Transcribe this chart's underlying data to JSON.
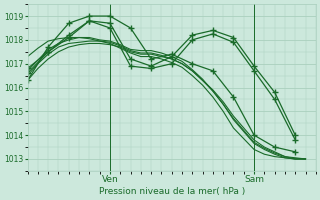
{
  "background_color": "#cce8dc",
  "grid_color": "#aacfbe",
  "line_color": "#1a6b2a",
  "marker_color": "#1a6b2a",
  "xlabel": "Pression niveau de la mer( hPa )",
  "xlabel_color": "#1a6b2a",
  "tick_color": "#1a6b2a",
  "ylim": [
    1012.5,
    1019.5
  ],
  "yticks": [
    1013,
    1014,
    1015,
    1016,
    1017,
    1018,
    1019
  ],
  "xlim": [
    0,
    28
  ],
  "ven_x": 8,
  "sam_x": 22,
  "series": [
    {
      "x": [
        0,
        1,
        2,
        3,
        4,
        5,
        6,
        7,
        8,
        9,
        10,
        11,
        12,
        13,
        14,
        15,
        16,
        17,
        18,
        19,
        20,
        21,
        22,
        23,
        24,
        25,
        26,
        27
      ],
      "y": [
        1016.3,
        1016.8,
        1017.2,
        1017.5,
        1017.7,
        1017.8,
        1017.85,
        1017.85,
        1017.8,
        1017.7,
        1017.5,
        1017.4,
        1017.4,
        1017.3,
        1017.2,
        1017.0,
        1016.7,
        1016.3,
        1015.9,
        1015.4,
        1014.8,
        1014.3,
        1013.8,
        1013.5,
        1013.3,
        1013.1,
        1013.05,
        1013.0
      ],
      "has_markers": false
    },
    {
      "x": [
        0,
        1,
        2,
        3,
        4,
        5,
        6,
        7,
        8,
        9,
        10,
        11,
        12,
        13,
        14,
        15,
        16,
        17,
        18,
        19,
        20,
        21,
        22,
        23,
        24,
        25,
        26,
        27
      ],
      "y": [
        1016.5,
        1017.0,
        1017.4,
        1017.7,
        1017.85,
        1017.9,
        1017.95,
        1017.95,
        1017.9,
        1017.75,
        1017.55,
        1017.45,
        1017.45,
        1017.35,
        1017.2,
        1017.0,
        1016.7,
        1016.3,
        1015.85,
        1015.3,
        1014.7,
        1014.2,
        1013.7,
        1013.45,
        1013.25,
        1013.1,
        1013.0,
        1013.0
      ],
      "has_markers": false
    },
    {
      "x": [
        0,
        1,
        2,
        3,
        4,
        5,
        6,
        7,
        8,
        9,
        10,
        11,
        12,
        13,
        14,
        15,
        16,
        17,
        18,
        19,
        20,
        21,
        22,
        23,
        24,
        25,
        26,
        27
      ],
      "y": [
        1016.7,
        1017.15,
        1017.6,
        1017.85,
        1018.0,
        1018.1,
        1018.1,
        1018.0,
        1017.95,
        1017.8,
        1017.6,
        1017.55,
        1017.55,
        1017.45,
        1017.3,
        1017.1,
        1016.75,
        1016.35,
        1015.85,
        1015.3,
        1014.65,
        1014.15,
        1013.65,
        1013.4,
        1013.2,
        1013.05,
        1013.0,
        1013.0
      ],
      "has_markers": false
    },
    {
      "x": [
        0,
        1,
        2,
        3,
        4,
        5,
        6,
        7,
        8,
        9,
        10,
        11,
        12,
        13,
        14,
        15,
        16,
        17,
        18,
        19,
        20,
        21,
        22,
        23,
        24,
        25,
        26,
        27
      ],
      "y": [
        1017.3,
        1017.65,
        1017.95,
        1018.05,
        1018.1,
        1018.1,
        1018.05,
        1017.95,
        1017.85,
        1017.65,
        1017.45,
        1017.3,
        1017.3,
        1017.2,
        1017.05,
        1016.85,
        1016.5,
        1016.1,
        1015.6,
        1015.0,
        1014.3,
        1013.85,
        1013.4,
        1013.2,
        1013.1,
        1013.05,
        1013.0,
        1013.0
      ],
      "has_markers": false
    },
    {
      "x": [
        0,
        2,
        4,
        6,
        8,
        10,
        12,
        14,
        16,
        18,
        20,
        22,
        24,
        26
      ],
      "y": [
        1016.3,
        1017.7,
        1018.7,
        1019.0,
        1019.0,
        1018.5,
        1017.2,
        1017.4,
        1017.0,
        1016.7,
        1015.6,
        1014.0,
        1013.5,
        1013.3
      ],
      "has_markers": true
    },
    {
      "x": [
        0,
        2,
        4,
        6,
        8,
        10,
        12,
        14,
        16,
        18,
        20,
        22,
        24,
        26
      ],
      "y": [
        1016.6,
        1017.5,
        1018.1,
        1018.8,
        1018.5,
        1016.9,
        1016.8,
        1017.0,
        1018.0,
        1018.25,
        1017.9,
        1016.7,
        1015.5,
        1013.8
      ],
      "has_markers": true
    },
    {
      "x": [
        0,
        2,
        4,
        6,
        8,
        10,
        12,
        14,
        16,
        18,
        20,
        22,
        24,
        26
      ],
      "y": [
        1016.8,
        1017.5,
        1018.2,
        1018.8,
        1018.7,
        1017.2,
        1016.9,
        1017.3,
        1018.2,
        1018.4,
        1018.1,
        1016.9,
        1015.8,
        1014.0
      ],
      "has_markers": true
    }
  ]
}
